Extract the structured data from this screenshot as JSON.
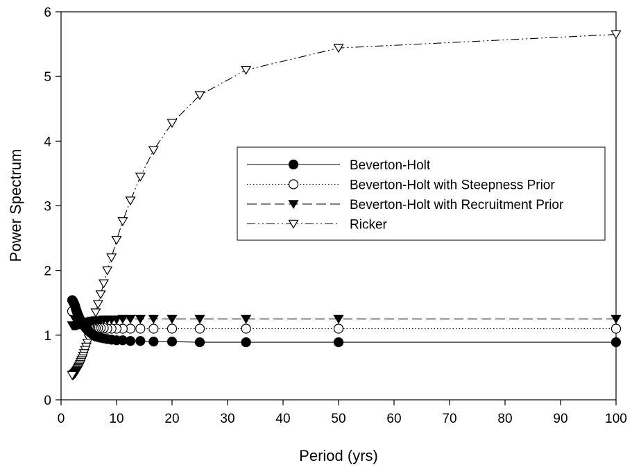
{
  "chart_data": {
    "type": "line",
    "title": "",
    "xlabel": "Period (yrs)",
    "ylabel": "Power Spectrum",
    "xlim": [
      0,
      100
    ],
    "ylim": [
      0,
      6
    ],
    "xticks": [
      0,
      10,
      20,
      30,
      40,
      50,
      60,
      70,
      80,
      90,
      100
    ],
    "yticks": [
      0,
      1,
      2,
      3,
      4,
      5,
      6
    ],
    "grid": false,
    "legend_position": "center-right",
    "x": [
      100,
      50,
      33.33,
      25,
      20,
      16.67,
      14.29,
      12.5,
      11.11,
      10,
      9.09,
      8.33,
      7.69,
      7.14,
      6.67,
      6.25,
      5.88,
      5.56,
      5.26,
      5,
      4.76,
      4.55,
      4.35,
      4.17,
      4,
      3.85,
      3.7,
      3.57,
      3.45,
      3.33,
      3.23,
      3.13,
      3.03,
      2.94,
      2.86,
      2.78,
      2.7,
      2.63,
      2.56,
      2.5,
      2.44,
      2.38,
      2.33,
      2.27,
      2.22,
      2.17,
      2.13,
      2.08,
      2.04,
      2
    ],
    "series": [
      {
        "name": "Beverton-Holt",
        "line": "solid",
        "marker": "filled-circle",
        "color": "#000000",
        "values": [
          0.89,
          0.89,
          0.89,
          0.89,
          0.9,
          0.9,
          0.91,
          0.91,
          0.92,
          0.92,
          0.93,
          0.94,
          0.95,
          0.96,
          0.97,
          0.98,
          1.0,
          1.02,
          1.04,
          1.06,
          1.08,
          1.1,
          1.12,
          1.14,
          1.16,
          1.18,
          1.2,
          1.22,
          1.24,
          1.26,
          1.28,
          1.3,
          1.32,
          1.34,
          1.36,
          1.38,
          1.4,
          1.42,
          1.44,
          1.46,
          1.47,
          1.48,
          1.49,
          1.5,
          1.51,
          1.52,
          1.53,
          1.53,
          1.54,
          1.54
        ]
      },
      {
        "name": "Beverton-Holt with Steepness Prior",
        "line": "dotted",
        "marker": "open-circle",
        "color": "#000000",
        "values": [
          1.1,
          1.1,
          1.1,
          1.1,
          1.1,
          1.1,
          1.1,
          1.1,
          1.1,
          1.1,
          1.1,
          1.1,
          1.11,
          1.11,
          1.11,
          1.11,
          1.11,
          1.12,
          1.12,
          1.13,
          1.13,
          1.14,
          1.15,
          1.16,
          1.17,
          1.18,
          1.19,
          1.2,
          1.21,
          1.22,
          1.23,
          1.24,
          1.25,
          1.26,
          1.27,
          1.28,
          1.29,
          1.3,
          1.31,
          1.32,
          1.33,
          1.34,
          1.34,
          1.35,
          1.35,
          1.36,
          1.36,
          1.36,
          1.37,
          1.37
        ]
      },
      {
        "name": "Beverton-Holt with Recruitment Prior",
        "line": "dashed",
        "marker": "filled-triangle-down",
        "color": "#000000",
        "values": [
          1.25,
          1.25,
          1.25,
          1.25,
          1.25,
          1.25,
          1.25,
          1.25,
          1.25,
          1.24,
          1.24,
          1.24,
          1.24,
          1.23,
          1.23,
          1.23,
          1.22,
          1.22,
          1.21,
          1.21,
          1.2,
          1.2,
          1.19,
          1.19,
          1.18,
          1.18,
          1.18,
          1.17,
          1.17,
          1.17,
          1.16,
          1.16,
          1.16,
          1.16,
          1.15,
          1.15,
          1.15,
          1.15,
          1.15,
          1.15,
          1.15,
          1.15,
          1.15,
          1.15,
          1.15,
          1.15,
          1.15,
          1.15,
          1.15,
          1.15
        ]
      },
      {
        "name": "Ricker",
        "line": "dash-dot-dot",
        "marker": "open-triangle-down",
        "color": "#000000",
        "values": [
          5.65,
          5.44,
          5.1,
          4.71,
          4.28,
          3.86,
          3.45,
          3.08,
          2.76,
          2.47,
          2.2,
          2.0,
          1.8,
          1.63,
          1.48,
          1.35,
          1.22,
          1.12,
          1.02,
          0.95,
          0.88,
          0.82,
          0.77,
          0.72,
          0.68,
          0.64,
          0.61,
          0.58,
          0.55,
          0.53,
          0.51,
          0.49,
          0.48,
          0.46,
          0.45,
          0.44,
          0.43,
          0.42,
          0.41,
          0.41,
          0.4,
          0.4,
          0.39,
          0.39,
          0.39,
          0.38,
          0.38,
          0.38,
          0.38,
          0.38
        ]
      }
    ]
  }
}
